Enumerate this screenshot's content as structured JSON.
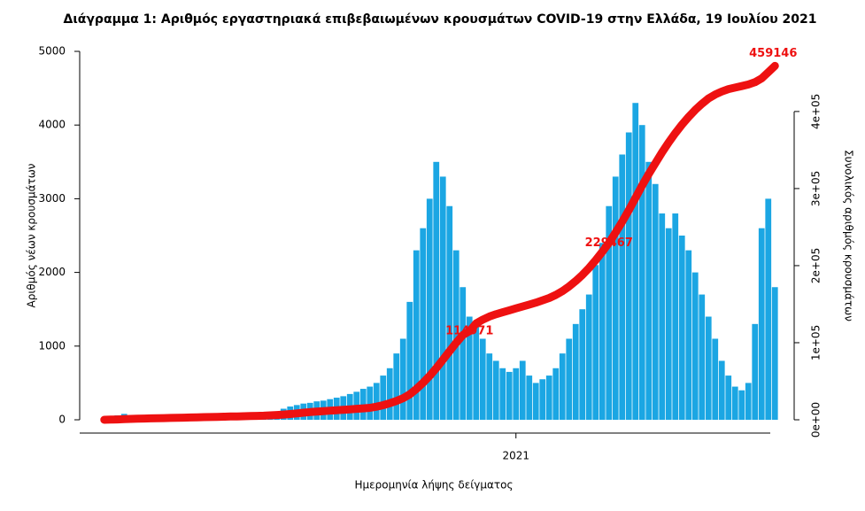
{
  "chart_data": {
    "type": "bar",
    "title": "Διάγραμμα 1: Αριθμός εργαστηριακά επιβεβαιωμένων κρουσμάτων COVID-19 στην Ελλάδα, 19 Ιουλίου 2021",
    "x_label": "Ημερομηνία λήψης δείγματος",
    "y_label": "Αριθμός νέων κρουσμάτων",
    "y2_label": "Συνολικός αριθμός κρουσμάτων",
    "categories": [
      null,
      null,
      null,
      null,
      null,
      null,
      null,
      null,
      null,
      null,
      null,
      null,
      null,
      null,
      null,
      null,
      null,
      null,
      null,
      null,
      null,
      null,
      null,
      null,
      null,
      null,
      null,
      null,
      null,
      null,
      null,
      null,
      null,
      null,
      null,
      null,
      null,
      null,
      null,
      null,
      null,
      null,
      null,
      null,
      null,
      null,
      null,
      null,
      null,
      null,
      null,
      null,
      null,
      null,
      null,
      null,
      null,
      null,
      null,
      null,
      null,
      null,
      "2021",
      null,
      null,
      null,
      null,
      null,
      null,
      null,
      null,
      null,
      null,
      null,
      null,
      null,
      null,
      null,
      null,
      null,
      null,
      null,
      null,
      null,
      null,
      null,
      null,
      null,
      null,
      null,
      null,
      null,
      null,
      null,
      null,
      null,
      null,
      null,
      null,
      null,
      null,
      null
    ],
    "series": [
      {
        "color": "#1ba6e3",
        "values": [
          10,
          20,
          60,
          80,
          60,
          40,
          20,
          15,
          10,
          10,
          10,
          15,
          20,
          15,
          20,
          25,
          30,
          40,
          50,
          40,
          30,
          30,
          35,
          40,
          50,
          80,
          100,
          150,
          180,
          200,
          220,
          230,
          250,
          260,
          280,
          300,
          320,
          350,
          380,
          420,
          450,
          500,
          600,
          700,
          900,
          1100,
          1600,
          2300,
          2600,
          3000,
          3500,
          3300,
          2900,
          2300,
          1800,
          1400,
          1300,
          1100,
          900,
          800,
          700,
          650,
          700,
          800,
          600,
          500,
          550,
          600,
          700,
          900,
          1100,
          1300,
          1500,
          1700,
          2100,
          2400,
          2900,
          3300,
          3600,
          3900,
          4300,
          4000,
          3500,
          3200,
          2800,
          2600,
          2800,
          2500,
          2300,
          2000,
          1700,
          1400,
          1100,
          800,
          600,
          450,
          400,
          500,
          1300,
          2600,
          3000,
          1800
        ]
      },
      {
        "axis": "y2",
        "color": "#ee1111",
        "values": [
          0,
          200,
          500,
          800,
          1100,
          1400,
          1600,
          1800,
          2000,
          2200,
          2400,
          2600,
          2800,
          3000,
          3200,
          3400,
          3600,
          3800,
          4000,
          4200,
          4400,
          4600,
          4800,
          5000,
          5300,
          5700,
          6200,
          6800,
          7500,
          8300,
          9200,
          10000,
          10600,
          11200,
          11800,
          12400,
          13000,
          13600,
          14200,
          14800,
          15500,
          17000,
          19000,
          21500,
          24500,
          28000,
          33000,
          40000,
          48000,
          57000,
          67000,
          78000,
          89000,
          100000,
          110000,
          114971,
          125000,
          130000,
          134000,
          137000,
          139500,
          142000,
          144500,
          147000,
          149500,
          152000,
          155000,
          158000,
          162000,
          167000,
          173000,
          180000,
          188000,
          197000,
          207000,
          218000,
          229467,
          243000,
          257000,
          272000,
          288000,
          304000,
          319000,
          333000,
          347000,
          360000,
          372000,
          383000,
          393000,
          402000,
          410000,
          417000,
          422000,
          426000,
          429000,
          431000,
          433000,
          435000,
          438000,
          443000,
          451000,
          459146
        ],
        "value_labels": [
          null,
          null,
          null,
          null,
          null,
          null,
          null,
          null,
          null,
          null,
          null,
          null,
          null,
          null,
          null,
          null,
          null,
          null,
          null,
          null,
          null,
          null,
          null,
          null,
          null,
          null,
          null,
          null,
          null,
          null,
          null,
          null,
          null,
          null,
          null,
          null,
          null,
          null,
          null,
          null,
          null,
          null,
          null,
          null,
          null,
          null,
          null,
          null,
          null,
          null,
          null,
          null,
          null,
          null,
          null,
          "114971",
          null,
          null,
          null,
          null,
          null,
          null,
          null,
          null,
          null,
          null,
          null,
          null,
          null,
          null,
          null,
          null,
          null,
          null,
          null,
          null,
          "229467",
          null,
          null,
          null,
          null,
          null,
          null,
          null,
          null,
          null,
          null,
          null,
          null,
          null,
          null,
          null,
          null,
          null,
          null,
          null,
          null,
          null,
          null,
          null,
          null,
          "459146"
        ]
      }
    ],
    "ylim": [
      0,
      5000
    ],
    "yticks": [
      0,
      1000,
      2000,
      3000,
      4000,
      5000
    ],
    "y2lim": [
      0,
      478000
    ],
    "y2ticks": [
      {
        "value": 0,
        "label": "0e+00"
      },
      {
        "value": 100000,
        "label": "1e+05"
      },
      {
        "value": 200000,
        "label": "2e+05"
      },
      {
        "value": 300000,
        "label": "3e+05"
      },
      {
        "value": 400000,
        "label": "4e+05"
      }
    ]
  }
}
